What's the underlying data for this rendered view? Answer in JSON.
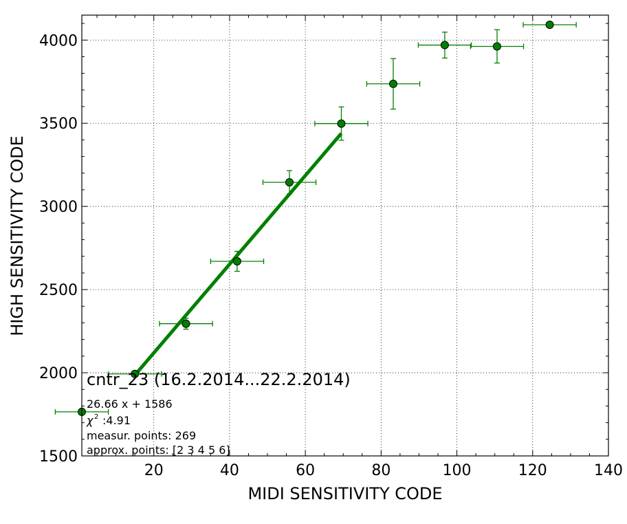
{
  "chart_data": {
    "type": "scatter",
    "xlabel": "MIDI SENSITIVITY CODE",
    "ylabel": "HIGH SENSITIVITY CODE",
    "xlim": [
      1,
      140
    ],
    "ylim": [
      1500,
      4150
    ],
    "xticks": [
      20,
      40,
      60,
      80,
      100,
      120,
      140
    ],
    "yticks": [
      1500,
      2000,
      2500,
      3000,
      3500,
      4000
    ],
    "grid": true,
    "color": "#008000",
    "points": [
      {
        "x": 1,
        "y": 1765,
        "xerr": 7,
        "yerr": 0
      },
      {
        "x": 15,
        "y": 1993,
        "xerr": 7,
        "yerr": 0
      },
      {
        "x": 28.5,
        "y": 2295,
        "xerr": 7,
        "yerr": 33
      },
      {
        "x": 42,
        "y": 2670,
        "xerr": 7,
        "yerr": 60
      },
      {
        "x": 55.8,
        "y": 3145,
        "xerr": 7,
        "yerr": 70
      },
      {
        "x": 69.5,
        "y": 3498,
        "xerr": 7,
        "yerr": 100
      },
      {
        "x": 83.2,
        "y": 3737,
        "xerr": 7,
        "yerr": 152
      },
      {
        "x": 96.8,
        "y": 3970,
        "xerr": 7,
        "yerr": 78
      },
      {
        "x": 110.6,
        "y": 3962,
        "xerr": 7,
        "yerr": 100
      },
      {
        "x": 124.5,
        "y": 4092,
        "xerr": 7,
        "yerr": 0
      }
    ],
    "fit": {
      "slope": 26.66,
      "intercept": 1586,
      "x_range": [
        15,
        69.5
      ]
    },
    "annotations": {
      "title": "cntr_23 (16.2.2014...22.2.2014)",
      "equation": "26.66 x + 1586",
      "chi2": ":4.91",
      "measur_points": "measur. points: 269",
      "approx_points": "approx. points: [2 3 4 5 6]"
    }
  }
}
